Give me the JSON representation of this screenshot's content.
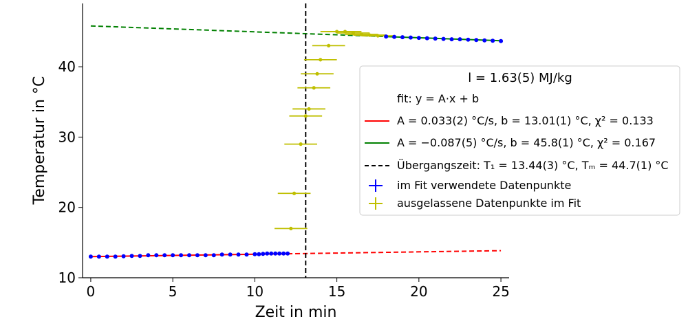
{
  "chart_data": {
    "type": "scatter",
    "xlabel": "Zeit in min",
    "ylabel": "Temperatur in °C",
    "xlim": [
      -0.5,
      25.5
    ],
    "ylim": [
      10,
      49
    ],
    "xticks": [
      0,
      5,
      10,
      15,
      20,
      25
    ],
    "yticks": [
      10,
      20,
      30,
      40
    ],
    "grid": false,
    "legend_position": "center-right",
    "legend_title": "l = 1.63(5) MJ/kg",
    "legend_entries": [
      "fit: y = A·x + b",
      "A = 0.033(2) °C/s, b = 13.01(1) °C, χ² = 0.133",
      "A = −0.087(5) °C/s, b = 45.8(1) °C, χ² = 0.167",
      "Übergangszeit: T₁ = 13.44(3) °C, Tₘ = 44.7(1) °C",
      "im Fit verwendete Datenpunkte",
      "ausgelassene Datenpunkte im Fit"
    ],
    "colors": {
      "fit_low": "#ff0000",
      "fit_high": "#008000",
      "transition": "#000000",
      "used_points": "#0000ff",
      "excluded_points": "#bfbf00"
    },
    "fit_low": {
      "x": [
        0,
        25
      ],
      "y": [
        13.0,
        13.85
      ]
    },
    "fit_high": {
      "x": [
        0,
        25
      ],
      "y": [
        45.8,
        43.7
      ]
    },
    "transition_x": 13.1,
    "used_points": {
      "x": [
        0,
        0.5,
        1,
        1.5,
        2,
        2.5,
        3,
        3.5,
        4,
        4.5,
        5,
        5.5,
        6,
        6.5,
        7,
        7.5,
        8,
        8.5,
        9,
        9.5,
        10,
        10.25,
        10.5,
        10.75,
        11,
        11.25,
        11.5,
        11.75,
        12,
        18,
        18.5,
        19,
        19.5,
        20,
        20.5,
        21,
        21.5,
        22,
        22.5,
        23,
        23.5,
        24,
        24.5,
        25
      ],
      "y": [
        13.0,
        13.0,
        13.0,
        13.0,
        13.05,
        13.1,
        13.1,
        13.2,
        13.2,
        13.2,
        13.2,
        13.2,
        13.2,
        13.2,
        13.2,
        13.2,
        13.3,
        13.3,
        13.3,
        13.3,
        13.35,
        13.35,
        13.4,
        13.45,
        13.45,
        13.45,
        13.45,
        13.45,
        13.45,
        44.3,
        44.25,
        44.2,
        44.15,
        44.1,
        44.05,
        44.0,
        43.95,
        43.9,
        43.9,
        43.85,
        43.8,
        43.75,
        43.7,
        43.65
      ]
    },
    "excluded_points": {
      "x": [
        12.2,
        12.4,
        12.8,
        13.1,
        13.3,
        13.6,
        13.8,
        14.0,
        14.5,
        15.0,
        15.5,
        16.0,
        16.5,
        17.0,
        17.5
      ],
      "y": [
        17.0,
        22.0,
        29.0,
        33.0,
        34.0,
        37.0,
        39.0,
        41.0,
        43.0,
        45.0,
        45.0,
        44.8,
        44.6,
        44.5,
        44.4
      ],
      "xerr": 1.0
    }
  }
}
